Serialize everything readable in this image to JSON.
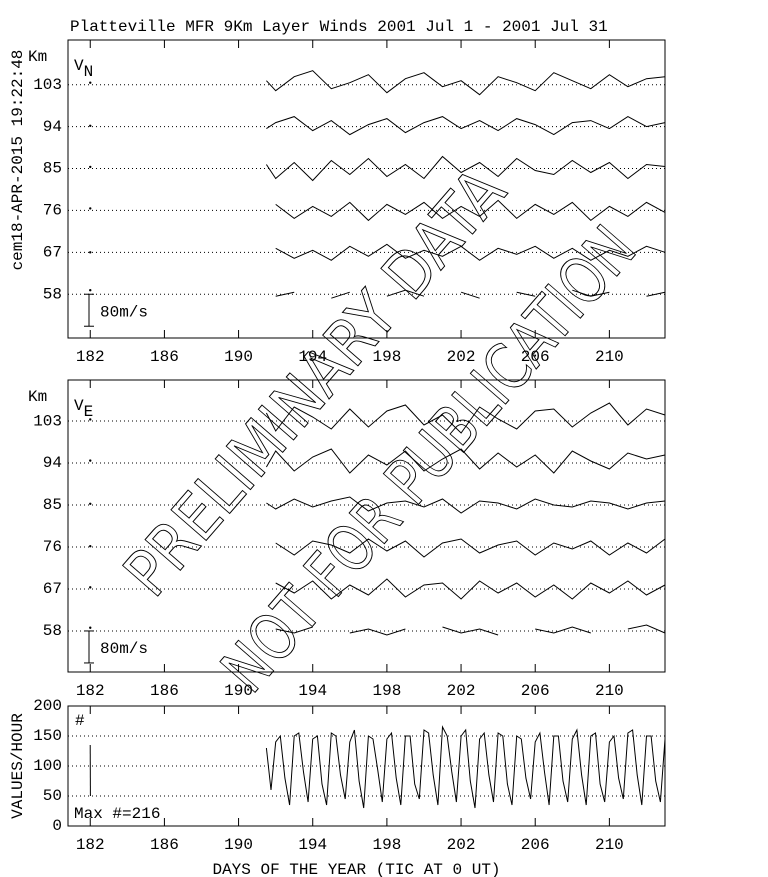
{
  "watermark": [
    "PRELIMINARY DATA",
    "NOT FOR PUBLICATION"
  ],
  "chart_data": [
    {
      "type": "wind-profile",
      "title": "Platteville MFR 9Km Layer Winds 2001 Jul  1 - 2001 Jul 31",
      "side_label": "cem18-APR-2015 19:22:48",
      "y_label": "Km",
      "panel_label": "V",
      "panel_label_sub": "N",
      "scale_bar": {
        "value": 80,
        "label": "80m/s"
      },
      "xlim": [
        180.8,
        213
      ],
      "xticks": [
        182,
        186,
        190,
        194,
        198,
        202,
        206,
        210
      ],
      "ylim": [
        48.6,
        112.6
      ],
      "yticks": [
        103,
        94,
        85,
        76,
        67,
        58
      ],
      "grid": true,
      "x": [
        182,
        186,
        191.5,
        192,
        193,
        194,
        195,
        196,
        197,
        198,
        199,
        200,
        201,
        202,
        203,
        204,
        205,
        206,
        207,
        208,
        209,
        210,
        211,
        212,
        213
      ],
      "series": [
        {
          "values": [
            5,
            null,
            10,
            -15,
            20,
            35,
            -10,
            5,
            25,
            -20,
            15,
            30,
            -5,
            10,
            -25,
            20,
            5,
            -15,
            30,
            10,
            -10,
            25,
            -5,
            15,
            20
          ]
        },
        {
          "values": [
            2,
            null,
            -5,
            10,
            25,
            -10,
            15,
            -20,
            5,
            20,
            -15,
            10,
            25,
            -5,
            15,
            -10,
            20,
            5,
            -20,
            10,
            15,
            -5,
            25,
            0,
            10
          ]
        },
        {
          "values": [
            4,
            null,
            10,
            -25,
            15,
            -30,
            20,
            -15,
            25,
            -20,
            10,
            -25,
            30,
            -10,
            15,
            -20,
            25,
            -5,
            -15,
            20,
            -10,
            15,
            -25,
            10,
            5
          ]
        },
        {
          "values": [
            5,
            null,
            null,
            15,
            -20,
            10,
            -15,
            20,
            -25,
            15,
            -10,
            20,
            -20,
            10,
            -15,
            25,
            -20,
            15,
            -10,
            20,
            -25,
            10,
            -15,
            20,
            -5
          ]
        },
        {
          "values": [
            0,
            null,
            null,
            10,
            -15,
            5,
            -20,
            15,
            -10,
            20,
            -15,
            5,
            -10,
            15,
            -20,
            10,
            -5,
            15,
            -15,
            10,
            -20,
            5,
            -10,
            15,
            0
          ]
        },
        {
          "values": [
            10,
            null,
            null,
            -5,
            5,
            null,
            -10,
            5,
            null,
            -5,
            10,
            -5,
            null,
            5,
            -10,
            null,
            5,
            -5,
            null,
            10,
            -5,
            5,
            null,
            -5,
            5
          ]
        }
      ]
    },
    {
      "type": "wind-profile",
      "y_label": "Km",
      "panel_label": "V",
      "panel_label_sub": "E",
      "scale_bar": {
        "value": 80,
        "label": "80m/s"
      },
      "xlim": [
        180.8,
        213
      ],
      "xticks": [
        182,
        186,
        190,
        194,
        198,
        202,
        206,
        210
      ],
      "ylim": [
        49.2,
        111.8
      ],
      "yticks": [
        103,
        94,
        85,
        76,
        67,
        58
      ],
      "grid": true,
      "x": [
        182,
        186,
        191.5,
        192,
        193,
        194,
        195,
        196,
        197,
        198,
        199,
        200,
        201,
        202,
        203,
        204,
        205,
        206,
        207,
        208,
        209,
        210,
        211,
        212,
        213
      ],
      "series": [
        {
          "values": [
            4,
            null,
            20,
            -25,
            35,
            10,
            -20,
            30,
            -15,
            25,
            40,
            -10,
            15,
            -30,
            35,
            5,
            -20,
            25,
            30,
            -15,
            20,
            45,
            -10,
            30,
            15
          ]
        },
        {
          "values": [
            6,
            null,
            -10,
            30,
            -20,
            15,
            35,
            -25,
            20,
            -5,
            30,
            -20,
            10,
            35,
            -15,
            25,
            -10,
            20,
            -25,
            30,
            5,
            -15,
            25,
            10,
            20
          ]
        },
        {
          "values": [
            3,
            null,
            5,
            -10,
            15,
            -5,
            10,
            20,
            -15,
            5,
            10,
            -5,
            15,
            -20,
            10,
            5,
            -10,
            15,
            0,
            -5,
            10,
            5,
            -10,
            5,
            10
          ]
        },
        {
          "values": [
            2,
            null,
            null,
            10,
            -20,
            15,
            5,
            -15,
            20,
            -10,
            15,
            -25,
            10,
            20,
            -15,
            5,
            15,
            -20,
            10,
            -5,
            15,
            -20,
            10,
            -15,
            20
          ]
        },
        {
          "values": [
            4,
            null,
            null,
            15,
            -10,
            20,
            -25,
            10,
            -15,
            25,
            -20,
            10,
            15,
            -25,
            20,
            -10,
            15,
            -20,
            10,
            -25,
            15,
            -10,
            20,
            -15,
            10
          ]
        },
        {
          "values": [
            8,
            null,
            null,
            5,
            -5,
            10,
            null,
            -5,
            5,
            -10,
            5,
            null,
            10,
            -5,
            5,
            -10,
            null,
            5,
            -5,
            10,
            -5,
            null,
            5,
            15,
            -5
          ]
        }
      ]
    },
    {
      "type": "line",
      "y_label": "VALUES/HOUR",
      "annotations": [
        "#",
        "Max #=216"
      ],
      "x_label": "DAYS OF THE YEAR (TIC AT 0 UT)",
      "xlim": [
        180.8,
        213
      ],
      "xticks": [
        182,
        186,
        190,
        194,
        198,
        202,
        206,
        210
      ],
      "ylim": [
        0,
        200
      ],
      "yticks": [
        0,
        50,
        100,
        150,
        200
      ],
      "grid": true,
      "x": [
        182,
        182.01,
        186,
        191.5,
        191.75,
        192,
        192.25,
        192.5,
        192.75,
        193,
        193.25,
        193.5,
        193.75,
        194,
        194.25,
        194.5,
        194.75,
        195,
        195.25,
        195.5,
        195.75,
        196,
        196.25,
        196.5,
        196.75,
        197,
        197.25,
        197.5,
        197.75,
        198,
        198.25,
        198.5,
        198.75,
        199,
        199.25,
        199.5,
        199.75,
        200,
        200.25,
        200.5,
        200.75,
        201,
        201.25,
        201.5,
        201.75,
        202,
        202.25,
        202.5,
        202.75,
        203,
        203.25,
        203.5,
        203.75,
        204,
        204.25,
        204.5,
        204.75,
        205,
        205.25,
        205.5,
        205.75,
        206,
        206.25,
        206.5,
        206.75,
        207,
        207.25,
        207.5,
        207.75,
        208,
        208.25,
        208.5,
        208.75,
        209,
        209.25,
        209.5,
        209.75,
        210,
        210.25,
        210.5,
        210.75,
        211,
        211.25,
        211.5,
        211.75,
        212,
        212.25,
        212.5,
        212.75,
        213
      ],
      "values": [
        135,
        50,
        null,
        130,
        60,
        140,
        150,
        80,
        35,
        150,
        155,
        90,
        40,
        145,
        150,
        70,
        35,
        155,
        150,
        85,
        45,
        140,
        160,
        75,
        30,
        150,
        145,
        95,
        40,
        145,
        155,
        80,
        35,
        150,
        150,
        70,
        45,
        160,
        155,
        85,
        35,
        165,
        150,
        90,
        40,
        150,
        160,
        75,
        30,
        145,
        155,
        85,
        40,
        155,
        150,
        70,
        35,
        150,
        145,
        80,
        45,
        140,
        155,
        90,
        35,
        150,
        150,
        75,
        40,
        145,
        160,
        85,
        35,
        150,
        155,
        70,
        40,
        140,
        150,
        80,
        45,
        155,
        160,
        85,
        35,
        150,
        150,
        75,
        40,
        145
      ],
      "color": "#000000"
    }
  ]
}
